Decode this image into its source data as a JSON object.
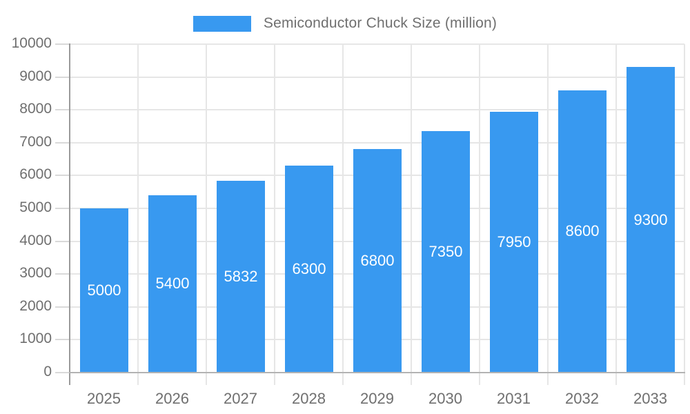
{
  "legend": {
    "label": "Semiconductor Chuck Size (million)"
  },
  "chart_data": {
    "type": "bar",
    "title": "Semiconductor Chuck Size (million)",
    "series_name": "Semiconductor Chuck Size (million)",
    "categories": [
      "2025",
      "2026",
      "2027",
      "2028",
      "2029",
      "2030",
      "2031",
      "2032",
      "2033"
    ],
    "values": [
      5000,
      5400,
      5832,
      6300,
      6800,
      7350,
      7950,
      8600,
      9300
    ],
    "xlabel": "",
    "ylabel": "",
    "ylim": [
      0,
      10000
    ],
    "ytick_step": 1000,
    "ytick_labels": [
      "0",
      "1000",
      "2000",
      "3000",
      "4000",
      "5000",
      "6000",
      "7000",
      "8000",
      "9000",
      "10000"
    ],
    "grid": true,
    "legend_position": "top",
    "bar_labels_inside": true
  },
  "colors": {
    "bar": "#3899f0",
    "bar_label": "#ffffff",
    "grid_line": "#e6e6e6",
    "tick_line": "#d9d9d9",
    "y_axis_line": "#9a9a9a",
    "x_axis_line": "#b3b3b3",
    "axis_text": "#6f6f6f",
    "legend_text": "#6f6f6f",
    "background": "#ffffff"
  }
}
